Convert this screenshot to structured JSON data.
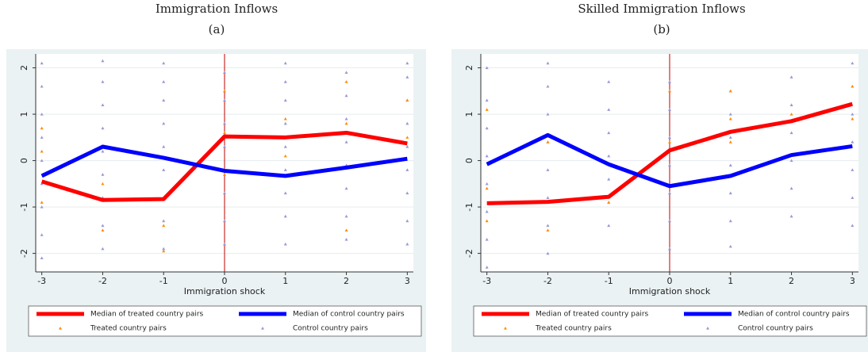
{
  "chart_data": [
    {
      "type": "line",
      "title": "Immigration Inflows",
      "subtitle": "(a)",
      "x_label": "Immigration shock",
      "x": [
        -3,
        -2,
        -1,
        0,
        1,
        2,
        3
      ],
      "xlim": [
        -3.1,
        3.1
      ],
      "xticks": [
        -3,
        -2,
        -1,
        0,
        1,
        2,
        3
      ],
      "ylim": [
        -2.4,
        2.3
      ],
      "yticks": [
        -2,
        -1,
        0,
        1,
        2
      ],
      "grid": true,
      "vline": 0,
      "vline_color": "#c00000",
      "legend": "bottom",
      "series": [
        {
          "name": "Median of treated country pairs",
          "color": "#ff0000",
          "values": [
            -0.45,
            -0.85,
            -0.83,
            0.52,
            0.5,
            0.6,
            0.37
          ]
        },
        {
          "name": "Median of control country pairs",
          "color": "#0000ff",
          "values": [
            -0.33,
            0.3,
            0.06,
            -0.22,
            -0.33,
            -0.15,
            0.04
          ]
        },
        {
          "name": "Treated country pairs",
          "type": "scatter",
          "color": "#ff8c00",
          "x": [
            -3,
            -3,
            -3,
            -2,
            -2,
            -1,
            -1,
            -1,
            0,
            0,
            0,
            1,
            1,
            2,
            2,
            2,
            3,
            3
          ],
          "values": [
            -0.9,
            0.2,
            0.7,
            -1.5,
            -0.5,
            -1.95,
            -1.4,
            -0.8,
            1.5,
            0.6,
            -0.3,
            0.1,
            0.9,
            -1.5,
            0.8,
            1.7,
            0.5,
            1.3
          ]
        },
        {
          "name": "Control country pairs",
          "type": "scatter",
          "color": "#9898d8",
          "x": [
            -3,
            -3,
            -3,
            -3,
            -3,
            -3,
            -3,
            -3,
            -3,
            -2,
            -2,
            -2,
            -2,
            -2,
            -2,
            -2,
            -2,
            -2,
            -1,
            -1,
            -1,
            -1,
            -1,
            -1,
            -1,
            -1,
            -1,
            0,
            0,
            0,
            0,
            0,
            0,
            0,
            0,
            1,
            1,
            1,
            1,
            1,
            1,
            1,
            1,
            1,
            2,
            2,
            2,
            2,
            2,
            2,
            2,
            2,
            3,
            3,
            3,
            3,
            3,
            3,
            3,
            3,
            3
          ],
          "values": [
            -2.1,
            -1.6,
            -1.0,
            -0.5,
            0.0,
            0.5,
            1.0,
            1.6,
            2.1,
            -1.9,
            -1.4,
            -0.8,
            -0.3,
            0.2,
            0.7,
            1.2,
            1.7,
            2.15,
            -1.9,
            -1.3,
            -0.8,
            -0.2,
            0.3,
            0.8,
            1.3,
            1.7,
            2.1,
            -1.8,
            -1.3,
            -0.7,
            -0.2,
            0.3,
            0.8,
            1.3,
            1.9,
            -1.8,
            -1.2,
            -0.7,
            -0.2,
            0.3,
            0.8,
            1.3,
            1.7,
            2.1,
            -1.7,
            -1.2,
            -0.6,
            -0.1,
            0.4,
            0.9,
            1.4,
            1.9,
            -1.8,
            -1.3,
            -0.7,
            -0.2,
            0.3,
            0.8,
            1.3,
            1.8,
            2.1
          ]
        }
      ]
    },
    {
      "type": "line",
      "title": "Skilled Immigration Inflows",
      "subtitle": "(b)",
      "x_label": "Immigration shock",
      "x": [
        -3,
        -2,
        -1,
        0,
        1,
        2,
        3
      ],
      "xlim": [
        -3.1,
        3.1
      ],
      "xticks": [
        -3,
        -2,
        -1,
        0,
        1,
        2,
        3
      ],
      "ylim": [
        -2.4,
        2.3
      ],
      "yticks": [
        -2,
        -1,
        0,
        1,
        2
      ],
      "grid": true,
      "vline": 0,
      "vline_color": "#c00000",
      "legend": "bottom",
      "series": [
        {
          "name": "Median of treated country pairs",
          "color": "#ff0000",
          "values": [
            -0.92,
            -0.89,
            -0.78,
            0.22,
            0.62,
            0.85,
            1.22
          ]
        },
        {
          "name": "Median of control country pairs",
          "color": "#0000ff",
          "values": [
            -0.08,
            0.55,
            -0.08,
            -0.55,
            -0.33,
            0.12,
            0.31
          ]
        },
        {
          "name": "Treated country pairs",
          "type": "scatter",
          "color": "#ff8c00",
          "x": [
            -3,
            -3,
            -3,
            -2,
            -2,
            -1,
            0,
            0,
            1,
            1,
            1,
            2,
            3,
            3
          ],
          "values": [
            -1.3,
            -0.6,
            1.1,
            -1.5,
            0.4,
            -0.9,
            1.5,
            0.4,
            1.5,
            0.9,
            0.4,
            1.0,
            1.6,
            0.9
          ]
        },
        {
          "name": "Control country pairs",
          "type": "scatter",
          "color": "#9898d8",
          "x": [
            -3,
            -3,
            -3,
            -3,
            -3,
            -3,
            -3,
            -3,
            -2,
            -2,
            -2,
            -2,
            -2,
            -2,
            -2,
            -2,
            -1,
            -1,
            -1,
            -1,
            -1,
            -1,
            -1,
            0,
            0,
            0,
            0,
            0,
            0,
            0,
            1,
            1,
            1,
            1,
            1,
            1,
            1,
            2,
            2,
            2,
            2,
            2,
            2,
            3,
            3,
            3,
            3,
            3,
            3,
            3
          ],
          "values": [
            -2.3,
            -1.7,
            -1.1,
            -0.5,
            0.1,
            0.7,
            1.3,
            2.0,
            -2.0,
            -1.4,
            -0.8,
            -0.2,
            0.4,
            1.0,
            1.6,
            2.1,
            -1.4,
            -0.9,
            -0.4,
            0.1,
            0.6,
            1.1,
            1.7,
            -1.9,
            -1.3,
            -0.7,
            -0.1,
            0.5,
            1.1,
            1.7,
            -1.85,
            -1.3,
            -0.7,
            -0.1,
            0.5,
            1.0,
            1.5,
            -1.2,
            -0.6,
            0.0,
            0.6,
            1.2,
            1.8,
            -1.4,
            -0.8,
            -0.2,
            0.4,
            1.0,
            1.6,
            2.1
          ]
        }
      ]
    }
  ]
}
